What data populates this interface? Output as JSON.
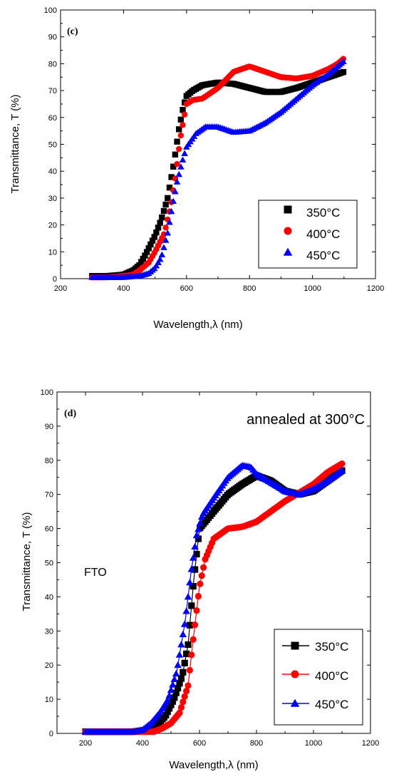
{
  "figure": {
    "colors": {
      "s350": "#000000",
      "s400": "#ff0000",
      "s450": "#0000ff"
    }
  },
  "chart_data": [
    {
      "type": "scatter",
      "panel_label": "(c)",
      "xlabel": "Wavelength,λ (nm)",
      "ylabel": "Transmittance, T (%)",
      "xlim": [
        200,
        1200
      ],
      "ylim": [
        0,
        100
      ],
      "xticks": [
        "200",
        "400",
        "600",
        "800",
        "1000",
        "1200"
      ],
      "yticks": [
        "0",
        "10",
        "20",
        "30",
        "40",
        "50",
        "60",
        "70",
        "80",
        "90",
        "100"
      ],
      "legend_position": "bottom-right",
      "legend_style": "markers",
      "series": [
        {
          "name": "350°C",
          "marker": "square",
          "color": "#000000",
          "x": [
            300,
            350,
            400,
            430,
            450,
            470,
            500,
            520,
            540,
            560,
            575,
            590,
            600,
            620,
            650,
            700,
            750,
            800,
            850,
            900,
            950,
            1000,
            1050,
            1100
          ],
          "y": [
            1,
            1,
            1.5,
            3,
            5,
            9,
            16,
            22,
            30,
            43,
            55,
            64,
            68,
            70,
            72,
            73,
            72.5,
            71,
            69.5,
            69.5,
            71,
            73,
            75,
            77
          ]
        },
        {
          "name": "400°C",
          "marker": "circle",
          "color": "#ff0000",
          "x": [
            300,
            350,
            400,
            430,
            450,
            480,
            500,
            530,
            550,
            565,
            580,
            600,
            620,
            650,
            700,
            750,
            800,
            850,
            900,
            950,
            1000,
            1050,
            1080,
            1100
          ],
          "y": [
            0.5,
            0.5,
            1,
            1.5,
            3,
            6,
            10,
            17,
            27,
            38,
            52,
            65,
            66.5,
            67,
            71,
            77,
            79,
            77,
            75,
            74.5,
            75.5,
            78,
            80,
            82
          ]
        },
        {
          "name": "450°C",
          "marker": "triangle",
          "color": "#0000ff",
          "x": [
            300,
            350,
            400,
            450,
            480,
            500,
            520,
            540,
            555,
            570,
            585,
            600,
            630,
            660,
            700,
            750,
            800,
            850,
            900,
            950,
            1000,
            1050,
            1100
          ],
          "y": [
            0.5,
            0.5,
            0.5,
            1,
            2,
            4,
            8,
            17,
            27,
            36,
            43,
            49,
            54,
            56.5,
            56.5,
            54.5,
            55,
            58,
            62,
            67,
            72,
            76,
            81
          ]
        }
      ]
    },
    {
      "type": "line",
      "panel_label": "(d)",
      "annotation": "annealed at 300°C",
      "note": "FTO",
      "xlabel": "Wavelength,λ (nm)",
      "ylabel": "Transmittance, T (%)",
      "xlim": [
        100,
        1200
      ],
      "ylim": [
        0,
        100
      ],
      "xticks": [
        "200",
        "400",
        "600",
        "800",
        "1000",
        "1200"
      ],
      "yticks": [
        "0",
        "10",
        "20",
        "30",
        "40",
        "50",
        "60",
        "70",
        "80",
        "90",
        "100"
      ],
      "legend_position": "bottom-right",
      "legend_style": "line+marker",
      "series": [
        {
          "name": "350°C",
          "marker": "square",
          "color": "#000000",
          "x": [
            200,
            300,
            370,
            420,
            450,
            480,
            510,
            540,
            560,
            580,
            600,
            650,
            700,
            750,
            800,
            850,
            900,
            950,
            1000,
            1050,
            1100
          ],
          "y": [
            0.5,
            0.5,
            0.5,
            1,
            2.5,
            5,
            10,
            17,
            26,
            45,
            60,
            65,
            70,
            73,
            75.5,
            74,
            71,
            70,
            71,
            74,
            77
          ]
        },
        {
          "name": "400°C",
          "marker": "circle",
          "color": "#ff0000",
          "x": [
            200,
            300,
            400,
            440,
            470,
            500,
            530,
            560,
            580,
            600,
            620,
            650,
            700,
            750,
            800,
            850,
            900,
            950,
            1000,
            1050,
            1080,
            1100
          ],
          "y": [
            0.5,
            0.5,
            0.5,
            0.5,
            1.5,
            3,
            6,
            14,
            29,
            43,
            51,
            57,
            60,
            60.5,
            62,
            65,
            68,
            70.5,
            73,
            76.5,
            78,
            79
          ]
        },
        {
          "name": "450°C",
          "marker": "triangle",
          "color": "#0000ff",
          "x": [
            200,
            300,
            370,
            400,
            430,
            460,
            490,
            520,
            550,
            570,
            590,
            610,
            650,
            700,
            750,
            780,
            800,
            850,
            900,
            950,
            1000,
            1050,
            1100
          ],
          "y": [
            0.5,
            0.5,
            0.5,
            1,
            3,
            6,
            10,
            18,
            33,
            47,
            58,
            64,
            69,
            75,
            78.5,
            78,
            76,
            73.5,
            71,
            70,
            71.5,
            74,
            77
          ]
        }
      ]
    }
  ]
}
